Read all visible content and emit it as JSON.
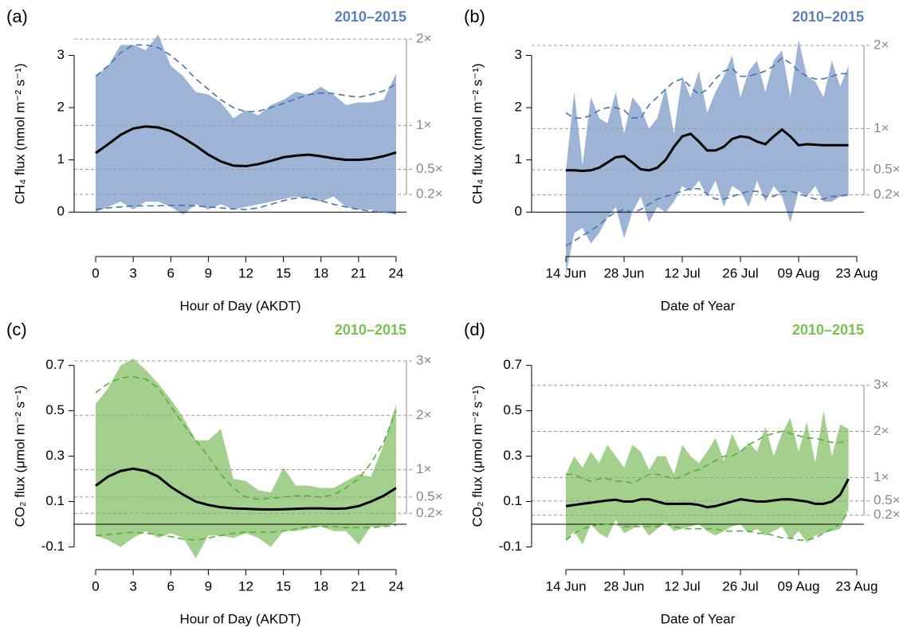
{
  "chart_data": [
    {
      "type": "band-line",
      "panel": "(a)",
      "period": "2010–2015",
      "period_color": "#5b7fbf",
      "xlabel": "Hour of Day (AKDT)",
      "ylabel": "CH₄ flux (nmol m⁻² s⁻¹)",
      "x": [
        0,
        1,
        2,
        3,
        4,
        5,
        6,
        7,
        8,
        9,
        10,
        11,
        12,
        13,
        14,
        15,
        16,
        17,
        18,
        19,
        20,
        21,
        22,
        23,
        24
      ],
      "xlim": [
        -1.72,
        24.83
      ],
      "xticks": [
        0,
        3,
        6,
        9,
        12,
        15,
        18,
        21,
        24
      ],
      "ylim": [
        -0.85,
        3.45
      ],
      "yticks": [
        0,
        1,
        2,
        3
      ],
      "y2lim": [
        -0.85,
        3.45
      ],
      "y2ticks": [
        {
          "value": 3.31,
          "label": "2×"
        },
        {
          "value": 1.66,
          "label": "1×"
        },
        {
          "value": 0.82,
          "label": "0.5×"
        },
        {
          "value": 0.34,
          "label": "0.2×"
        }
      ],
      "band": {
        "color": "#9db4d6",
        "upper": [
          2.6,
          2.8,
          3.2,
          3.2,
          3.1,
          3.4,
          2.8,
          2.6,
          2.3,
          2.25,
          2.1,
          1.8,
          1.95,
          1.85,
          2.05,
          2.15,
          2.3,
          2.25,
          2.4,
          2.25,
          2.05,
          2.1,
          2.1,
          2.15,
          2.65
        ],
        "lower": [
          0,
          0.1,
          0.2,
          0.05,
          0.2,
          0.2,
          0.1,
          -0.05,
          0.15,
          0.05,
          0.15,
          0.05,
          0.1,
          0.15,
          0.2,
          0.25,
          0.3,
          0.25,
          0.2,
          0.3,
          0.1,
          0.05,
          0.05,
          0.0,
          -0.05
        ]
      },
      "envelope": {
        "color": "#4a72b0",
        "upper": [
          2.6,
          2.8,
          3.05,
          3.2,
          3.2,
          3.15,
          3.0,
          2.8,
          2.55,
          2.35,
          2.15,
          2.0,
          1.92,
          1.93,
          2.0,
          2.08,
          2.17,
          2.25,
          2.28,
          2.27,
          2.23,
          2.2,
          2.25,
          2.32,
          2.45
        ],
        "lower": [
          0.05,
          0.08,
          0.1,
          0.12,
          0.12,
          0.12,
          0.13,
          0.13,
          0.12,
          0.1,
          0.08,
          0.06,
          0.05,
          0.08,
          0.15,
          0.22,
          0.27,
          0.28,
          0.22,
          0.15,
          0.1,
          0.05,
          0.02,
          0.0,
          -0.02
        ]
      },
      "mean": {
        "color": "#000000",
        "values": [
          1.13,
          1.3,
          1.48,
          1.6,
          1.64,
          1.62,
          1.55,
          1.42,
          1.27,
          1.1,
          0.97,
          0.89,
          0.88,
          0.92,
          0.98,
          1.05,
          1.08,
          1.1,
          1.07,
          1.03,
          1.0,
          1.0,
          1.02,
          1.07,
          1.14
        ]
      }
    },
    {
      "type": "band-line",
      "panel": "(b)",
      "period": "2010–2015",
      "period_color": "#5b7fbf",
      "xlabel": "Date of Year",
      "ylabel": "CH₄ flux (nmol m⁻² s⁻¹)",
      "x": [
        165,
        167,
        169,
        171,
        173,
        175,
        177,
        179,
        181,
        183,
        185,
        187,
        189,
        191,
        193,
        195,
        197,
        199,
        201,
        203,
        205,
        207,
        209,
        211,
        213,
        215,
        217,
        219,
        221,
        223,
        225,
        227,
        229,
        231,
        233
      ],
      "xlim": [
        156.75,
        236.73
      ],
      "xticks": [
        {
          "value": 165,
          "label": "14 Jun"
        },
        {
          "value": 179,
          "label": "28 Jun"
        },
        {
          "value": 193,
          "label": "12 Jul"
        },
        {
          "value": 207,
          "label": "26 Jul"
        },
        {
          "value": 221,
          "label": "09 Aug"
        },
        {
          "value": 235,
          "label": "23 Aug"
        }
      ],
      "ylim": [
        -0.85,
        3.45
      ],
      "yticks": [
        0,
        1,
        2,
        3
      ],
      "y2lim": [
        -0.85,
        3.45
      ],
      "y2ticks": [
        {
          "value": 3.19,
          "label": "2×"
        },
        {
          "value": 1.6,
          "label": "1×"
        },
        {
          "value": 0.81,
          "label": "0.5×"
        },
        {
          "value": 0.33,
          "label": "0.2×"
        }
      ],
      "band": {
        "color": "#9db4d6",
        "upper": [
          0.8,
          2.3,
          0.9,
          2.2,
          1.8,
          1.7,
          2.3,
          1.5,
          2.2,
          2.0,
          1.6,
          1.8,
          2.4,
          1.5,
          2.6,
          2.2,
          2.7,
          1.9,
          2.3,
          2.6,
          3.0,
          2.2,
          2.7,
          2.9,
          2.3,
          2.9,
          3.1,
          2.2,
          3.3,
          2.6,
          2.5,
          2.2,
          2.9,
          2.4,
          2.8
        ],
        "lower": [
          -1.2,
          -0.4,
          -0.3,
          -0.6,
          -0.4,
          -0.1,
          0.1,
          -0.5,
          0.0,
          0.3,
          -0.2,
          0.1,
          0.0,
          0.2,
          0.5,
          0.4,
          0.6,
          0.3,
          0.6,
          0.1,
          0.5,
          0.4,
          0.1,
          0.6,
          0.2,
          0.5,
          0.3,
          -0.2,
          0.4,
          0.3,
          0.5,
          0.2,
          0.2,
          0.3,
          0.3
        ]
      },
      "envelope": {
        "color": "#4a72b0",
        "upper": [
          1.9,
          1.8,
          1.8,
          1.85,
          1.95,
          2.0,
          2.0,
          1.95,
          1.8,
          1.8,
          2.05,
          2.2,
          2.35,
          2.5,
          2.55,
          2.4,
          2.25,
          2.35,
          2.55,
          2.7,
          2.75,
          2.6,
          2.6,
          2.65,
          2.7,
          2.8,
          2.95,
          2.85,
          2.7,
          2.6,
          2.55,
          2.55,
          2.6,
          2.65,
          2.65
        ],
        "lower": [
          -0.65,
          -0.55,
          -0.45,
          -0.35,
          -0.25,
          -0.1,
          0.0,
          0.05,
          0.0,
          0.05,
          0.15,
          0.25,
          0.3,
          0.35,
          0.4,
          0.45,
          0.45,
          0.35,
          0.25,
          0.25,
          0.3,
          0.35,
          0.4,
          0.4,
          0.3,
          0.3,
          0.4,
          0.4,
          0.35,
          0.3,
          0.25,
          0.25,
          0.3,
          0.3,
          0.35
        ]
      },
      "mean": {
        "color": "#000000",
        "values": [
          0.8,
          0.8,
          0.79,
          0.8,
          0.85,
          0.95,
          1.05,
          1.07,
          0.95,
          0.82,
          0.8,
          0.85,
          1.0,
          1.25,
          1.45,
          1.5,
          1.35,
          1.18,
          1.18,
          1.25,
          1.4,
          1.45,
          1.43,
          1.35,
          1.3,
          1.45,
          1.58,
          1.45,
          1.28,
          1.3,
          1.29,
          1.28,
          1.28,
          1.28,
          1.28
        ]
      }
    },
    {
      "type": "band-line",
      "panel": "(c)",
      "period": "2010–2015",
      "period_color": "#78c250",
      "xlabel": "Hour of Day (AKDT)",
      "ylabel": "CO₂ flux (μmol m⁻² s⁻¹)",
      "x": [
        0,
        1,
        2,
        3,
        4,
        5,
        6,
        7,
        8,
        9,
        10,
        11,
        12,
        13,
        14,
        15,
        16,
        17,
        18,
        19,
        20,
        21,
        22,
        23,
        24
      ],
      "xlim": [
        -1.72,
        24.83
      ],
      "xticks": [
        0,
        3,
        6,
        9,
        12,
        15,
        18,
        21,
        24
      ],
      "ylim": [
        -0.2,
        0.79
      ],
      "yticks": [
        -0.1,
        0.1,
        0.3,
        0.5,
        0.7
      ],
      "y2lim": [
        -0.2,
        0.79
      ],
      "y2ticks": [
        {
          "value": 0.72,
          "label": "3×"
        },
        {
          "value": 0.48,
          "label": "2×"
        },
        {
          "value": 0.24,
          "label": "1×"
        },
        {
          "value": 0.12,
          "label": "0.5×"
        },
        {
          "value": 0.048,
          "label": "0.2×"
        }
      ],
      "band": {
        "color": "#a3d18d",
        "upper": [
          0.53,
          0.6,
          0.7,
          0.73,
          0.68,
          0.62,
          0.55,
          0.47,
          0.37,
          0.37,
          0.42,
          0.2,
          0.19,
          0.15,
          0.14,
          0.25,
          0.17,
          0.17,
          0.16,
          0.16,
          0.19,
          0.22,
          0.21,
          0.35,
          0.53
        ],
        "lower": [
          -0.05,
          -0.07,
          -0.1,
          -0.06,
          -0.03,
          -0.06,
          -0.04,
          -0.06,
          -0.15,
          -0.05,
          -0.05,
          -0.06,
          -0.04,
          -0.06,
          -0.1,
          -0.03,
          -0.03,
          -0.02,
          -0.01,
          -0.03,
          -0.03,
          -0.09,
          -0.01,
          -0.01,
          0.01
        ]
      },
      "envelope": {
        "color": "#5aad3c",
        "upper": [
          0.58,
          0.62,
          0.645,
          0.65,
          0.64,
          0.6,
          0.52,
          0.44,
          0.37,
          0.3,
          0.22,
          0.16,
          0.12,
          0.11,
          0.115,
          0.12,
          0.125,
          0.125,
          0.12,
          0.13,
          0.16,
          0.2,
          0.27,
          0.36,
          0.5
        ],
        "lower": [
          -0.05,
          -0.045,
          -0.04,
          -0.035,
          -0.04,
          -0.045,
          -0.055,
          -0.065,
          -0.07,
          -0.06,
          -0.05,
          -0.04,
          -0.035,
          -0.035,
          -0.035,
          -0.03,
          -0.02,
          -0.01,
          -0.01,
          -0.01,
          -0.015,
          -0.015,
          -0.015,
          -0.01,
          -0.005
        ]
      },
      "mean": {
        "color": "#000000",
        "values": [
          0.17,
          0.21,
          0.235,
          0.245,
          0.235,
          0.21,
          0.165,
          0.13,
          0.1,
          0.085,
          0.075,
          0.07,
          0.068,
          0.066,
          0.065,
          0.066,
          0.068,
          0.07,
          0.07,
          0.068,
          0.07,
          0.08,
          0.1,
          0.125,
          0.16
        ]
      }
    },
    {
      "type": "band-line",
      "panel": "(d)",
      "period": "2010–2015",
      "period_color": "#78c250",
      "xlabel": "Date of Year",
      "ylabel": "CO₂ flux (μmol m⁻² s⁻¹)",
      "x": [
        165,
        167,
        169,
        171,
        173,
        175,
        177,
        179,
        181,
        183,
        185,
        187,
        189,
        191,
        193,
        195,
        197,
        199,
        201,
        203,
        205,
        207,
        209,
        211,
        213,
        215,
        217,
        219,
        221,
        223,
        225,
        227,
        229,
        231,
        233
      ],
      "xlim": [
        156.75,
        236.73
      ],
      "xticks": [
        {
          "value": 165,
          "label": "14 Jun"
        },
        {
          "value": 179,
          "label": "28 Jun"
        },
        {
          "value": 193,
          "label": "12 Jul"
        },
        {
          "value": 207,
          "label": "26 Jul"
        },
        {
          "value": 221,
          "label": "09 Aug"
        },
        {
          "value": 235,
          "label": "23 Aug"
        }
      ],
      "ylim": [
        -0.2,
        0.79
      ],
      "yticks": [
        -0.1,
        0.1,
        0.3,
        0.5,
        0.7
      ],
      "y2lim": [
        -0.2,
        0.79
      ],
      "y2ticks": [
        {
          "value": 0.612,
          "label": "3×"
        },
        {
          "value": 0.409,
          "label": "2×"
        },
        {
          "value": 0.205,
          "label": "1×"
        },
        {
          "value": 0.103,
          "label": "0.5×"
        },
        {
          "value": 0.04,
          "label": "0.2×"
        }
      ],
      "band": {
        "color": "#a3d18d",
        "upper": [
          0.22,
          0.3,
          0.25,
          0.32,
          0.27,
          0.35,
          0.3,
          0.25,
          0.35,
          0.32,
          0.24,
          0.3,
          0.3,
          0.22,
          0.35,
          0.3,
          0.27,
          0.32,
          0.38,
          0.28,
          0.4,
          0.32,
          0.36,
          0.32,
          0.43,
          0.3,
          0.4,
          0.47,
          0.32,
          0.45,
          0.27,
          0.5,
          0.3,
          0.44,
          0.42
        ],
        "lower": [
          -0.07,
          -0.03,
          -0.09,
          0.0,
          -0.04,
          -0.06,
          0.02,
          -0.04,
          -0.02,
          0.0,
          -0.05,
          -0.02,
          0.01,
          -0.03,
          -0.02,
          -0.01,
          0.0,
          -0.03,
          -0.05,
          -0.03,
          -0.01,
          0.0,
          -0.04,
          -0.02,
          -0.05,
          -0.03,
          -0.01,
          -0.07,
          -0.03,
          -0.08,
          -0.05,
          -0.04,
          -0.03,
          -0.02,
          0.07
        ]
      },
      "envelope": {
        "color": "#5aad3c",
        "upper": [
          0.22,
          0.22,
          0.2,
          0.19,
          0.2,
          0.2,
          0.19,
          0.19,
          0.18,
          0.2,
          0.22,
          0.22,
          0.21,
          0.2,
          0.21,
          0.23,
          0.24,
          0.26,
          0.28,
          0.3,
          0.3,
          0.32,
          0.35,
          0.37,
          0.39,
          0.4,
          0.41,
          0.4,
          0.39,
          0.38,
          0.38,
          0.37,
          0.36,
          0.36,
          0.37
        ],
        "lower": [
          -0.07,
          -0.04,
          -0.02,
          -0.01,
          0.0,
          0.0,
          0.0,
          -0.01,
          -0.01,
          -0.01,
          -0.01,
          -0.01,
          0.0,
          -0.01,
          -0.02,
          -0.02,
          -0.02,
          -0.02,
          -0.02,
          -0.03,
          -0.03,
          -0.03,
          -0.03,
          -0.04,
          -0.04,
          -0.05,
          -0.06,
          -0.06,
          -0.07,
          -0.07,
          -0.06,
          -0.04,
          -0.02,
          0.0,
          0.06
        ]
      },
      "mean": {
        "color": "#000000",
        "values": [
          0.08,
          0.085,
          0.09,
          0.095,
          0.1,
          0.105,
          0.108,
          0.1,
          0.1,
          0.11,
          0.11,
          0.1,
          0.09,
          0.09,
          0.09,
          0.09,
          0.085,
          0.075,
          0.08,
          0.09,
          0.1,
          0.11,
          0.105,
          0.1,
          0.1,
          0.105,
          0.11,
          0.11,
          0.105,
          0.1,
          0.09,
          0.09,
          0.1,
          0.13,
          0.2
        ]
      }
    }
  ]
}
